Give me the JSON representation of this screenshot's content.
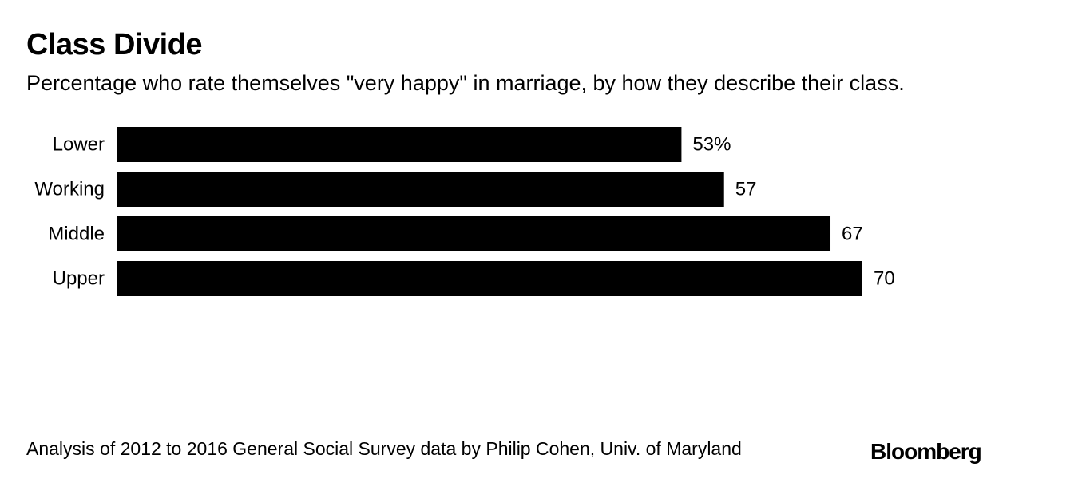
{
  "chart_data": {
    "type": "bar",
    "orientation": "horizontal",
    "title": "Class Divide",
    "subtitle": "Percentage who rate themselves \"very happy\" in marriage, by how they describe their class.",
    "categories": [
      "Lower",
      "Working",
      "Middle",
      "Upper"
    ],
    "values": [
      53,
      57,
      67,
      70
    ],
    "value_labels": [
      "53%",
      "57",
      "67",
      "70"
    ],
    "xlim": [
      0,
      70
    ],
    "unit": "%",
    "xlabel": "",
    "ylabel": "",
    "grid": false,
    "bar_color": "#000000"
  },
  "source": "Analysis of 2012 to 2016 General Social Survey data by Philip Cohen, Univ. of Maryland",
  "brand": "Bloomberg"
}
